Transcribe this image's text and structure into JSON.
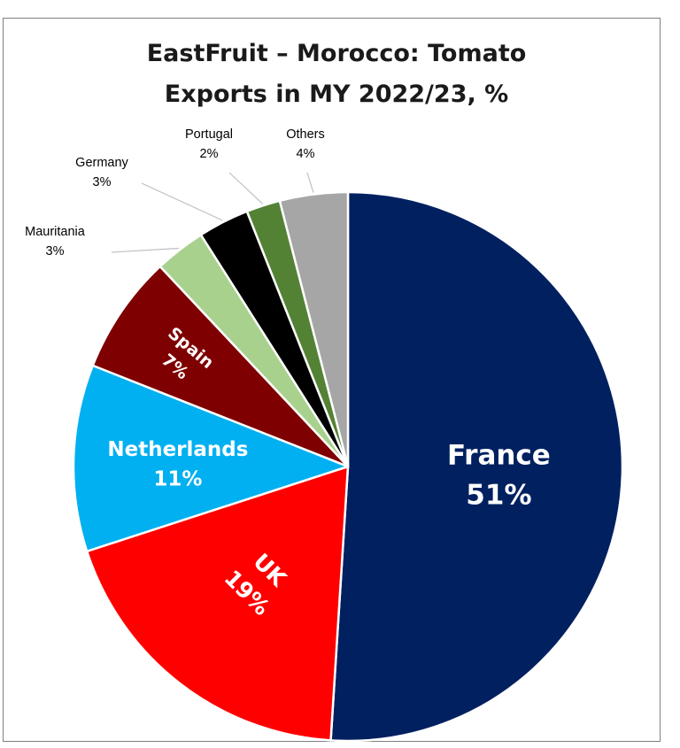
{
  "chart_data": {
    "type": "pie",
    "title_lines": [
      "EastFruit – Morocco: Tomato",
      "Exports in MY 2022/23, %"
    ],
    "slices": [
      {
        "name": "France",
        "value": 51,
        "label": "51%",
        "color": "#002060"
      },
      {
        "name": "UK",
        "value": 19,
        "label": "19%",
        "color": "#ff0000"
      },
      {
        "name": "Netherlands",
        "value": 11,
        "label": "11%",
        "color": "#00b0f0"
      },
      {
        "name": "Spain",
        "value": 7,
        "label": "7%",
        "color": "#7f0000"
      },
      {
        "name": "Mauritania",
        "value": 3,
        "label": "3%",
        "color": "#a9d18e"
      },
      {
        "name": "Germany",
        "value": 3,
        "label": "3%",
        "color": "#000000"
      },
      {
        "name": "Portugal",
        "value": 2,
        "label": "2%",
        "color": "#548235"
      },
      {
        "name": "Others",
        "value": 4,
        "label": "4%",
        "color": "#a6a6a6"
      }
    ]
  }
}
